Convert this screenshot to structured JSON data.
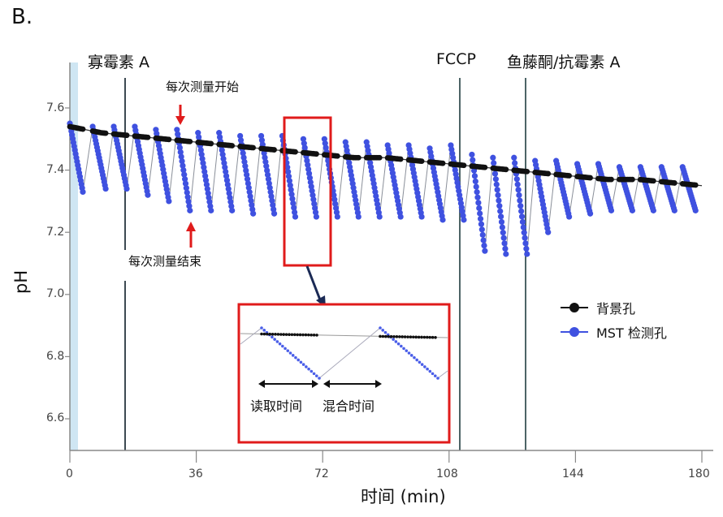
{
  "figure": {
    "panel_label": "B.",
    "markers": {
      "oligomycin": "寡霉素 A",
      "fccp": "FCCP",
      "rotenone": "鱼藤酮/抗霉素 A"
    },
    "annotations": {
      "measure_start": "每次测量开始",
      "measure_end": "每次测量结束",
      "read_time": "读取时间",
      "mix_time": "混合时间"
    },
    "legend": [
      {
        "label": "背景孔",
        "color": "#111111"
      },
      {
        "label": "MST 检测孔",
        "color": "#3f51e0"
      }
    ],
    "x_ticks": [
      "0",
      "36",
      "72",
      "108",
      "144",
      "180"
    ],
    "y_ticks": [
      "7.6",
      "7.4",
      "7.2",
      "7.0",
      "6.8",
      "6.6"
    ],
    "xlabel": "时间 (min)",
    "ylabel": "pH"
  },
  "chart_data": {
    "type": "line",
    "title": "",
    "xlabel": "时间 (min)",
    "ylabel": "pH",
    "xlim": [
      0,
      180
    ],
    "ylim": [
      6.5,
      7.75
    ],
    "x_ticks": [
      0,
      36,
      72,
      108,
      144,
      180
    ],
    "y_ticks": [
      6.6,
      6.8,
      7.0,
      7.2,
      7.4,
      7.6
    ],
    "grid": false,
    "legend_position": "right-middle",
    "vertical_markers": [
      {
        "label": "寡霉素 A",
        "x": 16
      },
      {
        "label": "FCCP",
        "x": 111
      },
      {
        "label": "鱼藤酮/抗霉素 A",
        "x": 130
      }
    ],
    "shaded_region": {
      "x_start": 0,
      "x_end": 2.3,
      "color": "#cfe6f3"
    },
    "series": [
      {
        "name": "背景孔",
        "color": "#111111",
        "x": [
          0,
          9,
          18,
          27,
          36,
          45,
          54,
          63,
          72,
          81,
          90,
          99,
          108,
          117,
          126,
          135,
          144,
          153,
          162,
          171,
          180
        ],
        "values": [
          7.54,
          7.52,
          7.51,
          7.5,
          7.49,
          7.48,
          7.47,
          7.46,
          7.45,
          7.44,
          7.44,
          7.43,
          7.42,
          7.41,
          7.4,
          7.39,
          7.38,
          7.37,
          7.37,
          7.36,
          7.35
        ]
      },
      {
        "name": "MST 检测孔",
        "color": "#3f51e0",
        "cycles": [
          {
            "start_x": 0,
            "peak": 7.55,
            "trough": 7.33
          },
          {
            "start_x": 6.5,
            "peak": 7.54,
            "trough": 7.34
          },
          {
            "start_x": 12.5,
            "peak": 7.54,
            "trough": 7.34
          },
          {
            "start_x": 18.5,
            "peak": 7.54,
            "trough": 7.32
          },
          {
            "start_x": 24.5,
            "peak": 7.53,
            "trough": 7.3
          },
          {
            "start_x": 30.5,
            "peak": 7.53,
            "trough": 7.27
          },
          {
            "start_x": 36.5,
            "peak": 7.52,
            "trough": 7.27
          },
          {
            "start_x": 42.5,
            "peak": 7.52,
            "trough": 7.27
          },
          {
            "start_x": 48.5,
            "peak": 7.51,
            "trough": 7.26
          },
          {
            "start_x": 54.5,
            "peak": 7.51,
            "trough": 7.26
          },
          {
            "start_x": 60.5,
            "peak": 7.51,
            "trough": 7.25
          },
          {
            "start_x": 66.5,
            "peak": 7.5,
            "trough": 7.25
          },
          {
            "start_x": 72.5,
            "peak": 7.5,
            "trough": 7.25
          },
          {
            "start_x": 78.5,
            "peak": 7.49,
            "trough": 7.25
          },
          {
            "start_x": 84.5,
            "peak": 7.49,
            "trough": 7.25
          },
          {
            "start_x": 90.5,
            "peak": 7.48,
            "trough": 7.25
          },
          {
            "start_x": 96.5,
            "peak": 7.48,
            "trough": 7.25
          },
          {
            "start_x": 102.5,
            "peak": 7.47,
            "trough": 7.24
          },
          {
            "start_x": 108.5,
            "peak": 7.48,
            "trough": 7.24
          },
          {
            "start_x": 114.5,
            "peak": 7.45,
            "trough": 7.14
          },
          {
            "start_x": 120.5,
            "peak": 7.44,
            "trough": 7.13
          },
          {
            "start_x": 126.5,
            "peak": 7.44,
            "trough": 7.13
          },
          {
            "start_x": 132.5,
            "peak": 7.43,
            "trough": 7.2
          },
          {
            "start_x": 138.5,
            "peak": 7.43,
            "trough": 7.25
          },
          {
            "start_x": 144.5,
            "peak": 7.42,
            "trough": 7.26
          },
          {
            "start_x": 150.5,
            "peak": 7.42,
            "trough": 7.27
          },
          {
            "start_x": 156.5,
            "peak": 7.41,
            "trough": 7.27
          },
          {
            "start_x": 162.5,
            "peak": 7.41,
            "trough": 7.27
          },
          {
            "start_x": 168.5,
            "peak": 7.41,
            "trough": 7.27
          },
          {
            "start_x": 174.5,
            "peak": 7.41,
            "trough": 7.27
          }
        ]
      }
    ],
    "annotations": [
      {
        "text": "每次测量开始",
        "x": 32,
        "arrow": "down"
      },
      {
        "text": "每次测量结束",
        "x": 35,
        "arrow": "up"
      },
      {
        "text": "读取时间",
        "region": "inset"
      },
      {
        "text": "混合时间",
        "region": "inset"
      }
    ],
    "inset": {
      "description": "zoom of two cycles (x≈61–74 min)",
      "labels": [
        "读取时间",
        "混合时间"
      ]
    }
  }
}
